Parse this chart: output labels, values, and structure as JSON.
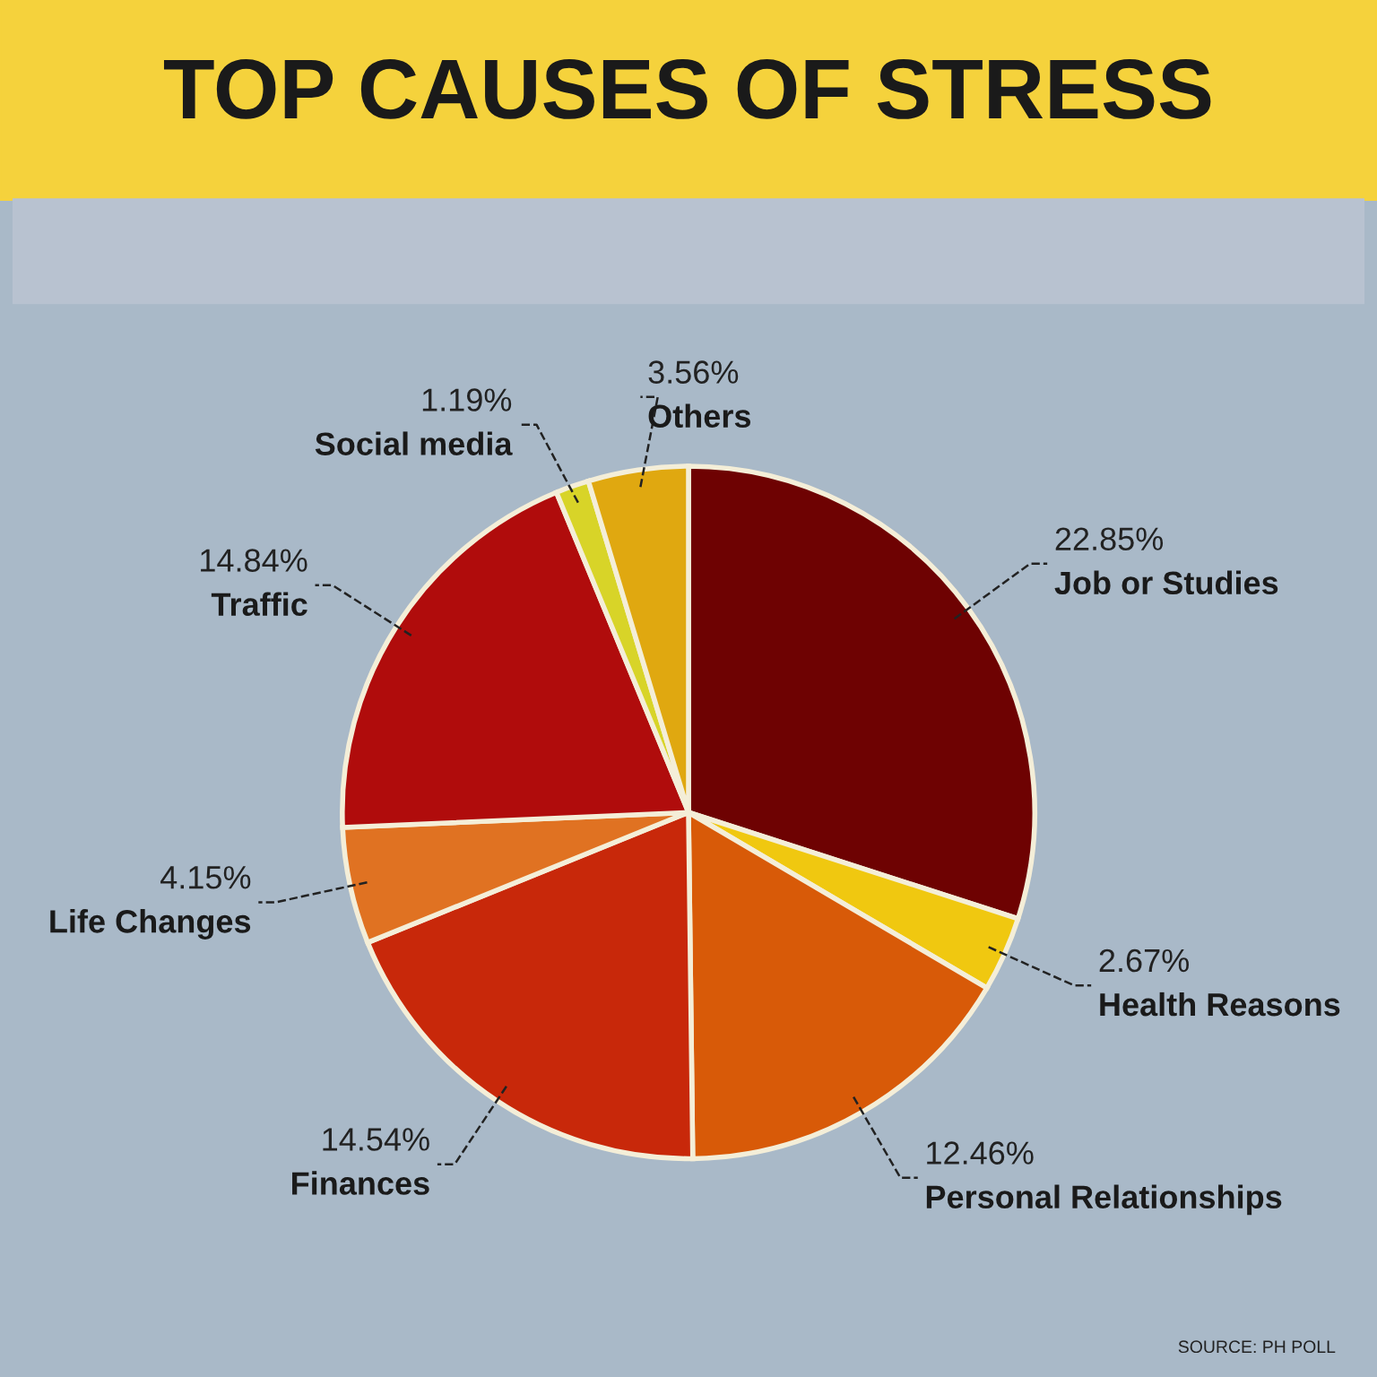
{
  "chart_data": {
    "type": "pie",
    "title": "TOP CAUSES OF STRESS",
    "categories": [
      "Job or Studies",
      "Health Reasons",
      "Personal Relationships",
      "Finances",
      "Life Changes",
      "Traffic",
      "Social media",
      "Others"
    ],
    "values": [
      22.85,
      2.67,
      12.46,
      14.54,
      4.15,
      14.84,
      1.19,
      3.56
    ],
    "value_labels": [
      "22.85%",
      "2.67%",
      "12.46%",
      "14.54%",
      "4.15%",
      "14.84%",
      "1.19%",
      "3.56%"
    ],
    "colors": [
      "#6e0202",
      "#f0c810",
      "#d85a08",
      "#c8280a",
      "#e07222",
      "#b00c0c",
      "#d8d428",
      "#e0a810"
    ],
    "annotations": [
      "SOURCE: PH POLL"
    ]
  }
}
